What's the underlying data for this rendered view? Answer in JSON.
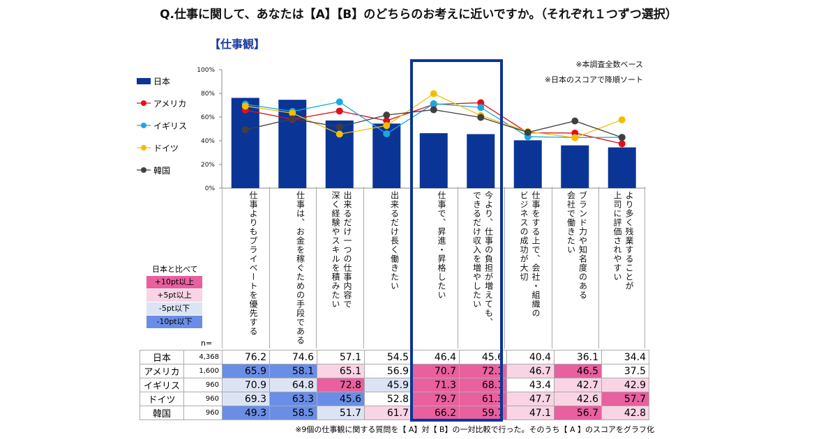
{
  "title": "Q.仕事に関して、あなたは【A】【B】のどちらのお考えに近いですか。（それぞれ１つずつ選択）",
  "subtitle": "【仕事観】",
  "notes": [
    "※本調査全数ベース",
    "※日本のスコアで降順ソート"
  ],
  "comparison_legend": {
    "title": "日本と比べて",
    "items": [
      {
        "label": "+10pt以上",
        "color": "#e8609e"
      },
      {
        "label": "+5pt以上",
        "color": "#f8d4e4"
      },
      {
        "label": "-5pt以下",
        "color": "#dce4f4"
      },
      {
        "label": "-10pt以下",
        "color": "#6a8ee6"
      }
    ]
  },
  "n_label": "n=",
  "footnote": "※9個の仕事観に関する質問を【 A】対【 B】の一対比較で行った。そのうち【 A 】のスコアをグラフ化",
  "chart_data": {
    "type": "bar+line",
    "ylim": [
      0,
      100
    ],
    "yticks": [
      "0%",
      "20%",
      "40%",
      "60%",
      "80%",
      "100%"
    ],
    "legend_position": "left",
    "categories": [
      "仕事よりもプライベートを優先する",
      "仕事は、お金を稼ぐための手段である",
      "出来るだけ一つの仕事内容で\n深く経験やスキルを積みたい",
      "出来るだけ長く働きたい",
      "仕事で、昇進・昇格したい",
      "今より、仕事の負担が増えても、\nできるだけ収入を増やしたい",
      "仕事をする上で、会社・組織の\nビジネスの成功が大切",
      "ブランド力や知名度のある\n会社で働きたい",
      "より多く残業することが\n上司に評価されやすい"
    ],
    "highlighted_categories": [
      4,
      5
    ],
    "series": [
      {
        "name": "日本",
        "type": "bar",
        "color": "#0a3596",
        "n": "4,368",
        "values": [
          76.2,
          74.6,
          57.1,
          54.5,
          46.4,
          45.6,
          40.4,
          36.1,
          34.4
        ]
      },
      {
        "name": "アメリカ",
        "type": "line",
        "color": "#e0101a",
        "n": "1,600",
        "values": [
          65.9,
          58.1,
          65.1,
          56.9,
          70.7,
          72.1,
          46.7,
          46.5,
          37.5
        ]
      },
      {
        "name": "イギリス",
        "type": "line",
        "color": "#1aa8e0",
        "n": "960",
        "values": [
          70.9,
          64.8,
          72.8,
          45.9,
          71.3,
          68.1,
          43.4,
          42.7,
          42.9
        ]
      },
      {
        "name": "ドイツ",
        "type": "line",
        "color": "#f0c000",
        "n": "960",
        "values": [
          69.3,
          63.3,
          45.6,
          52.8,
          79.7,
          61.3,
          47.7,
          42.6,
          57.7
        ]
      },
      {
        "name": "韓国",
        "type": "line",
        "color": "#404040",
        "n": "960",
        "values": [
          49.3,
          58.5,
          51.7,
          61.7,
          66.2,
          59.7,
          47.1,
          56.7,
          42.8
        ]
      }
    ]
  }
}
